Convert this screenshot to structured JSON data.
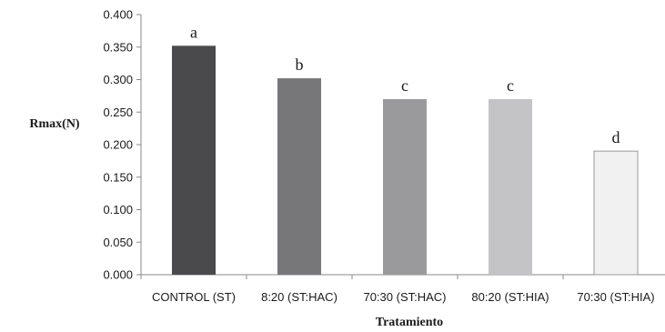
{
  "chart_data": {
    "type": "bar",
    "categories": [
      "CONTROL (ST)",
      "8:20 (ST:HAC)",
      "70:30 (ST:HAC)",
      "80:20 (ST:HIA)",
      "70:30 (ST:HIA)"
    ],
    "values": [
      0.352,
      0.302,
      0.27,
      0.27,
      0.19
    ],
    "bar_labels": [
      "a",
      "b",
      "c",
      "c",
      "d"
    ],
    "bar_colors": [
      "#4a4a4c",
      "#77777a",
      "#9a9a9c",
      "#c4c4c6",
      "#f1f1f1"
    ],
    "xlabel": "Tratamiento",
    "ylabel": "Rmax(N)",
    "ylim": [
      0,
      0.4
    ],
    "yticks": [
      "0.000",
      "0.050",
      "0.100",
      "0.150",
      "0.200",
      "0.250",
      "0.300",
      "0.350",
      "0.400"
    ],
    "grid": false,
    "legend": "none"
  }
}
